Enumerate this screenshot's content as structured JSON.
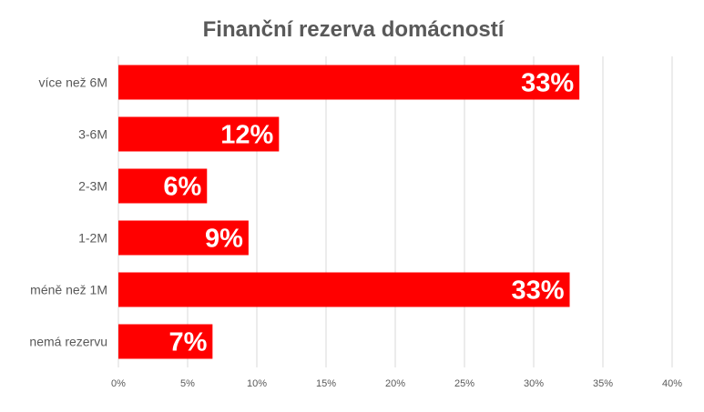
{
  "chart_data": {
    "type": "bar",
    "orientation": "horizontal",
    "title": "Finanční rezerva domácností",
    "categories": [
      "více než 6M",
      "3-6M",
      "2-3M",
      "1-2M",
      "méně než 1M",
      "nemá rezervu"
    ],
    "values": [
      33.3,
      11.6,
      6.4,
      9.4,
      32.6,
      6.8
    ],
    "data_labels": [
      "33%",
      "12%",
      "6%",
      "9%",
      "33%",
      "7%"
    ],
    "x_ticks": [
      0,
      5,
      10,
      15,
      20,
      25,
      30,
      35,
      40
    ],
    "x_tick_labels": [
      "0%",
      "5%",
      "10%",
      "15%",
      "20%",
      "25%",
      "30%",
      "35%",
      "40%"
    ],
    "xlim": [
      0,
      40
    ],
    "xlabel": "",
    "ylabel": "",
    "grid": "vertical",
    "legend": "none",
    "bar_color": "#ff0000",
    "label_color": "#ffffff"
  }
}
